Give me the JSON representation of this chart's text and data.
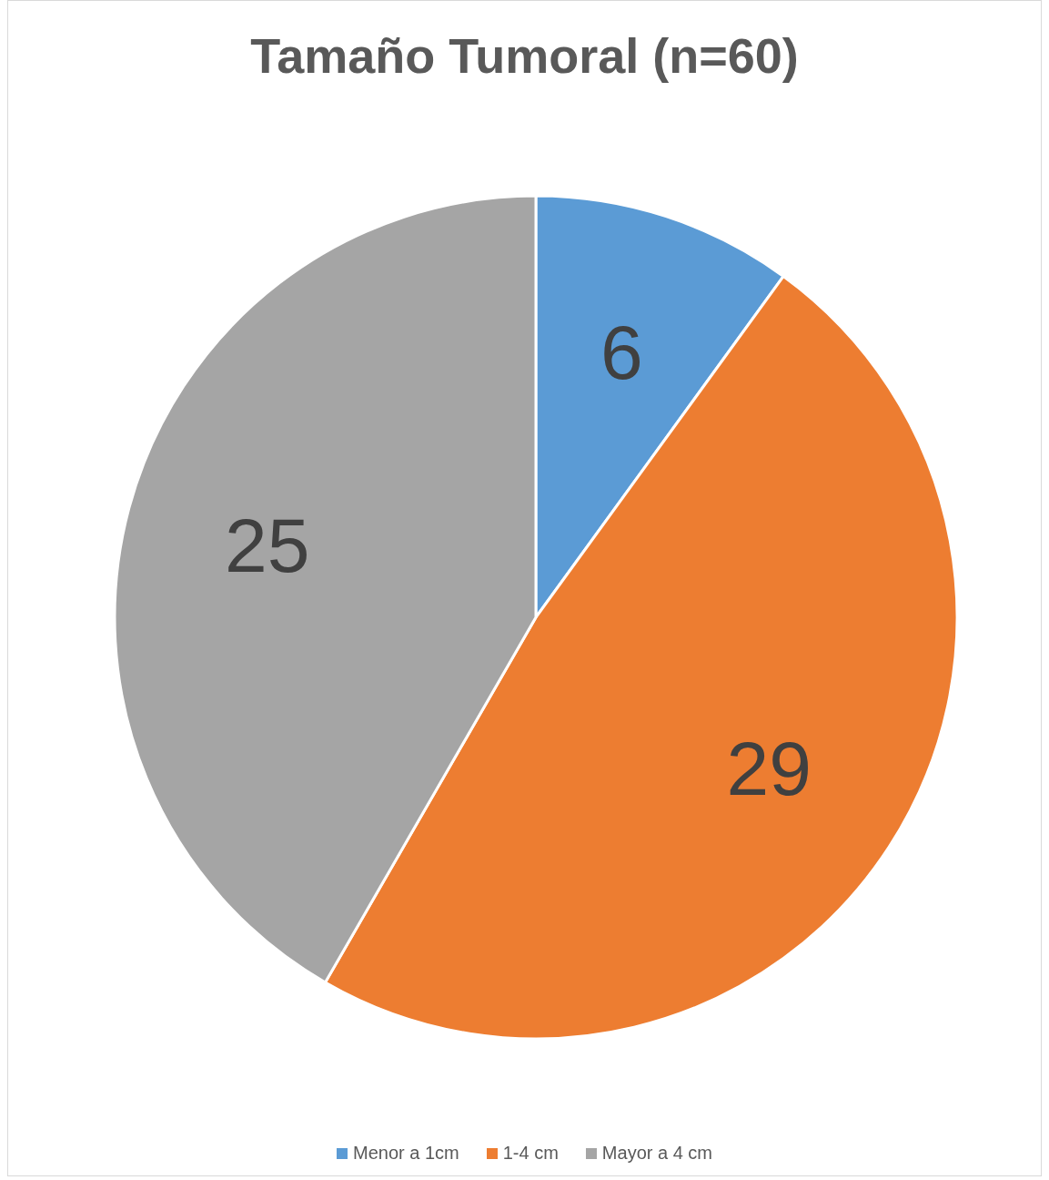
{
  "chart_data": {
    "type": "pie",
    "title": "Tamaño Tumoral (n=60)",
    "categories": [
      "Menor a 1cm",
      "1-4 cm",
      "Mayor a 4 cm"
    ],
    "values": [
      6,
      29,
      25
    ],
    "colors": [
      "#5b9bd5",
      "#ed7d31",
      "#a5a5a5"
    ],
    "data_labels": true,
    "legend": "bottom"
  }
}
